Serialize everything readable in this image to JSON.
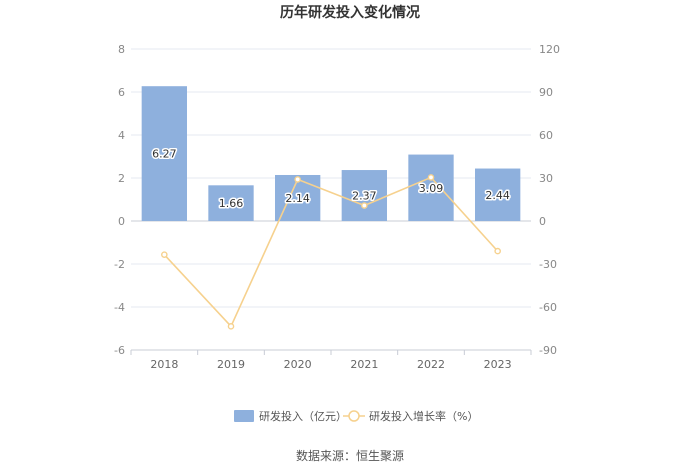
{
  "chart_data": {
    "type": "bar",
    "title": "历年研发投入变化情况",
    "categories": [
      "2018",
      "2019",
      "2020",
      "2021",
      "2022",
      "2023"
    ],
    "series": [
      {
        "name": "研发投入（亿元）",
        "type": "bar",
        "axis": "left",
        "color": "#8eb0dd",
        "values": [
          6.27,
          1.66,
          2.14,
          2.37,
          3.09,
          2.44
        ]
      },
      {
        "name": "研发投入增长率（%）",
        "type": "line",
        "axis": "right",
        "color": "#f6d18e",
        "values": [
          -23.5,
          -73.5,
          29.0,
          10.8,
          30.4,
          -21.0
        ]
      }
    ],
    "y_left": {
      "min": -6,
      "max": 8,
      "ticks": [
        "8",
        "6",
        "4",
        "2",
        "0",
        "-2",
        "-4",
        "-6"
      ]
    },
    "y_right": {
      "min": -90,
      "max": 120,
      "ticks": [
        "120",
        "90",
        "60",
        "30",
        "0",
        "-30",
        "-60",
        "-90"
      ]
    },
    "grid": true,
    "legend": "bottom-center"
  },
  "source_text": "数据来源：恒生聚源"
}
